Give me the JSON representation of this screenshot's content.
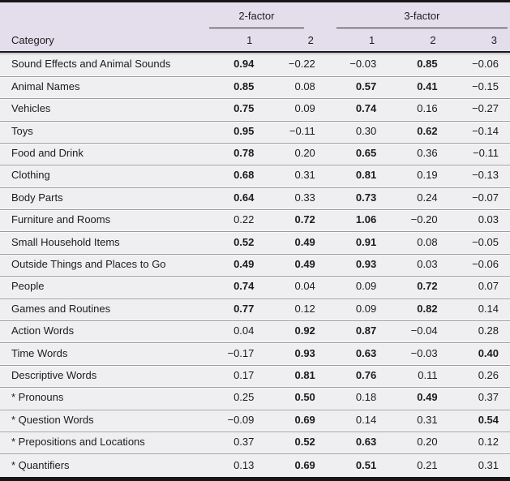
{
  "table": {
    "group_headers": [
      {
        "label": "2-factor",
        "span": 2
      },
      {
        "label": "3-factor",
        "span": 3
      }
    ],
    "category_header": "Category",
    "sub_headers": [
      "1",
      "2",
      "1",
      "2",
      "3"
    ],
    "footnote_marker": "*",
    "rows": [
      {
        "category": "Sound Effects and Animal Sounds",
        "values": [
          "0.94",
          "−0.22",
          "−0.03",
          "0.85",
          "−0.06"
        ],
        "bold": [
          true,
          false,
          false,
          true,
          false
        ]
      },
      {
        "category": "Animal Names",
        "values": [
          "0.85",
          "0.08",
          "0.57",
          "0.41",
          "−0.15"
        ],
        "bold": [
          true,
          false,
          true,
          true,
          false
        ]
      },
      {
        "category": "Vehicles",
        "values": [
          "0.75",
          "0.09",
          "0.74",
          "0.16",
          "−0.27"
        ],
        "bold": [
          true,
          false,
          true,
          false,
          false
        ]
      },
      {
        "category": "Toys",
        "values": [
          "0.95",
          "−0.11",
          "0.30",
          "0.62",
          "−0.14"
        ],
        "bold": [
          true,
          false,
          false,
          true,
          false
        ]
      },
      {
        "category": "Food and Drink",
        "values": [
          "0.78",
          "0.20",
          "0.65",
          "0.36",
          "−0.11"
        ],
        "bold": [
          true,
          false,
          true,
          false,
          false
        ]
      },
      {
        "category": "Clothing",
        "values": [
          "0.68",
          "0.31",
          "0.81",
          "0.19",
          "−0.13"
        ],
        "bold": [
          true,
          false,
          true,
          false,
          false
        ]
      },
      {
        "category": "Body Parts",
        "values": [
          "0.64",
          "0.33",
          "0.73",
          "0.24",
          "−0.07"
        ],
        "bold": [
          true,
          false,
          true,
          false,
          false
        ]
      },
      {
        "category": "Furniture and Rooms",
        "values": [
          "0.22",
          "0.72",
          "1.06",
          "−0.20",
          "0.03"
        ],
        "bold": [
          false,
          true,
          true,
          false,
          false
        ]
      },
      {
        "category": "Small Household Items",
        "values": [
          "0.52",
          "0.49",
          "0.91",
          "0.08",
          "−0.05"
        ],
        "bold": [
          true,
          true,
          true,
          false,
          false
        ]
      },
      {
        "category": "Outside Things and Places to Go",
        "values": [
          "0.49",
          "0.49",
          "0.93",
          "0.03",
          "−0.06"
        ],
        "bold": [
          true,
          true,
          true,
          false,
          false
        ]
      },
      {
        "category": "People",
        "values": [
          "0.74",
          "0.04",
          "0.09",
          "0.72",
          "0.07"
        ],
        "bold": [
          true,
          false,
          false,
          true,
          false
        ]
      },
      {
        "category": "Games and Routines",
        "values": [
          "0.77",
          "0.12",
          "0.09",
          "0.82",
          "0.14"
        ],
        "bold": [
          true,
          false,
          false,
          true,
          false
        ]
      },
      {
        "category": "Action Words",
        "values": [
          "0.04",
          "0.92",
          "0.87",
          "−0.04",
          "0.28"
        ],
        "bold": [
          false,
          true,
          true,
          false,
          false
        ]
      },
      {
        "category": "Time Words",
        "values": [
          "−0.17",
          "0.93",
          "0.63",
          "−0.03",
          "0.40"
        ],
        "bold": [
          false,
          true,
          true,
          false,
          true
        ]
      },
      {
        "category": "Descriptive Words",
        "values": [
          "0.17",
          "0.81",
          "0.76",
          "0.11",
          "0.26"
        ],
        "bold": [
          false,
          true,
          true,
          false,
          false
        ]
      },
      {
        "category": "* Pronouns",
        "values": [
          "0.25",
          "0.50",
          "0.18",
          "0.49",
          "0.37"
        ],
        "bold": [
          false,
          true,
          false,
          true,
          false
        ]
      },
      {
        "category": "* Question Words",
        "values": [
          "−0.09",
          "0.69",
          "0.14",
          "0.31",
          "0.54"
        ],
        "bold": [
          false,
          true,
          false,
          false,
          true
        ]
      },
      {
        "category": "* Prepositions and Locations",
        "values": [
          "0.37",
          "0.52",
          "0.63",
          "0.20",
          "0.12"
        ],
        "bold": [
          false,
          true,
          true,
          false,
          false
        ]
      },
      {
        "category": "* Quantifiers",
        "values": [
          "0.13",
          "0.69",
          "0.51",
          "0.21",
          "0.31"
        ],
        "bold": [
          false,
          true,
          true,
          false,
          false
        ]
      }
    ]
  },
  "colors": {
    "header_bg": "#e4deec",
    "row_bg": "#efeef1",
    "border_dark": "#161616",
    "row_divider": "#9b98a1",
    "text": "#1c1c1c"
  }
}
